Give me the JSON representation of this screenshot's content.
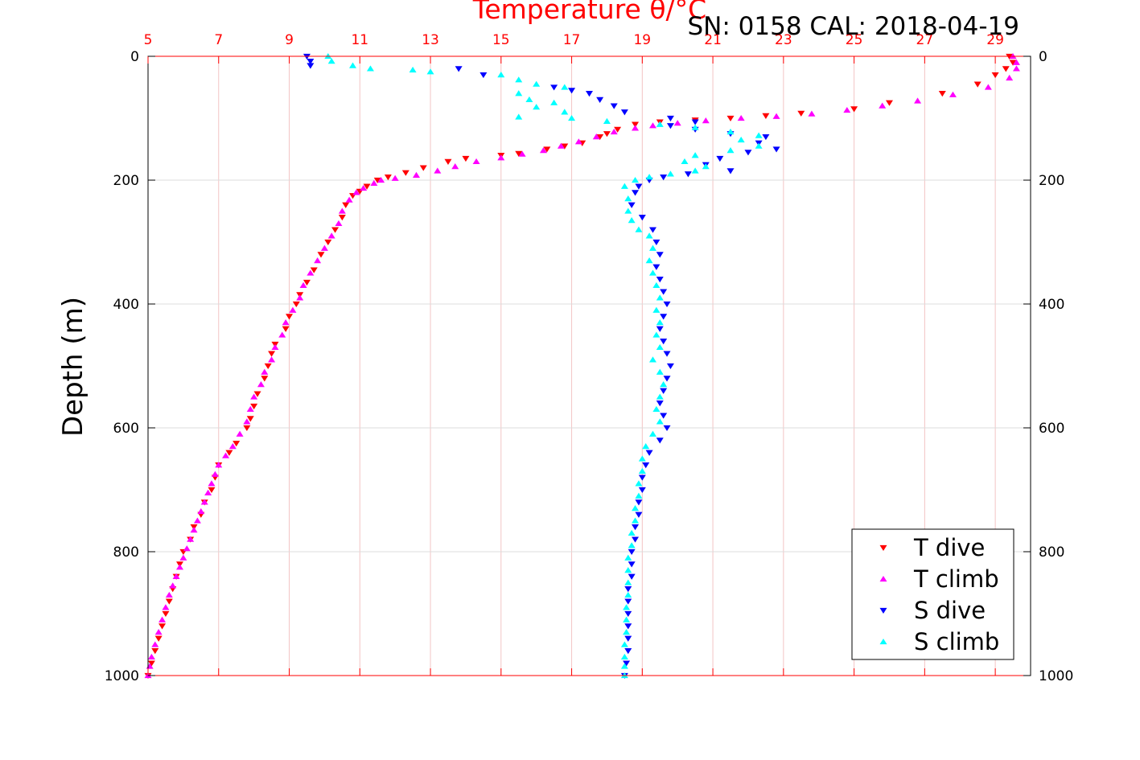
{
  "chart_data": {
    "type": "scatter",
    "title": "Temperature θ/°C",
    "annotation": "SN: 0158  CAL: 2018-04-19",
    "ylabel": "Depth (m)",
    "x_top_ticks": [
      "5",
      "7",
      "9",
      "11",
      "13",
      "15",
      "17",
      "19",
      "21",
      "23",
      "25",
      "27",
      "29"
    ],
    "x_top_values": [
      5,
      7,
      9,
      11,
      13,
      15,
      17,
      19,
      21,
      23,
      25,
      27,
      29
    ],
    "y_ticks": [
      "0",
      "200",
      "400",
      "600",
      "800",
      "1000"
    ],
    "y_values": [
      0,
      200,
      400,
      600,
      800,
      1000
    ],
    "xlim": [
      5,
      30
    ],
    "ylim": [
      0,
      1000
    ],
    "y_reversed": true,
    "grid": true,
    "legend_position": "bottom-right",
    "series": [
      {
        "name": "T dive",
        "color": "#ff0000",
        "marker": "triangle-down",
        "points": [
          [
            29.4,
            0
          ],
          [
            29.5,
            10
          ],
          [
            29.3,
            20
          ],
          [
            29.0,
            30
          ],
          [
            28.5,
            45
          ],
          [
            27.5,
            60
          ],
          [
            26.0,
            75
          ],
          [
            25.0,
            85
          ],
          [
            23.5,
            92
          ],
          [
            22.5,
            96
          ],
          [
            21.5,
            100
          ],
          [
            20.5,
            103
          ],
          [
            19.5,
            106
          ],
          [
            18.8,
            110
          ],
          [
            18.3,
            118
          ],
          [
            18.0,
            125
          ],
          [
            17.8,
            130
          ],
          [
            17.3,
            140
          ],
          [
            16.8,
            145
          ],
          [
            16.3,
            150
          ],
          [
            15.5,
            157
          ],
          [
            15.0,
            160
          ],
          [
            14.0,
            165
          ],
          [
            13.5,
            170
          ],
          [
            12.8,
            180
          ],
          [
            12.3,
            188
          ],
          [
            11.8,
            195
          ],
          [
            11.5,
            200
          ],
          [
            11.2,
            210
          ],
          [
            11.0,
            218
          ],
          [
            10.8,
            225
          ],
          [
            10.6,
            240
          ],
          [
            10.5,
            260
          ],
          [
            10.3,
            280
          ],
          [
            10.1,
            300
          ],
          [
            9.9,
            320
          ],
          [
            9.7,
            345
          ],
          [
            9.5,
            365
          ],
          [
            9.3,
            385
          ],
          [
            9.2,
            400
          ],
          [
            9.0,
            420
          ],
          [
            8.9,
            440
          ],
          [
            8.6,
            465
          ],
          [
            8.5,
            480
          ],
          [
            8.4,
            500
          ],
          [
            8.3,
            520
          ],
          [
            8.1,
            545
          ],
          [
            8.0,
            565
          ],
          [
            7.9,
            585
          ],
          [
            7.8,
            600
          ],
          [
            7.5,
            625
          ],
          [
            7.3,
            640
          ],
          [
            7.0,
            660
          ],
          [
            6.9,
            680
          ],
          [
            6.8,
            700
          ],
          [
            6.6,
            720
          ],
          [
            6.5,
            740
          ],
          [
            6.3,
            760
          ],
          [
            6.2,
            780
          ],
          [
            6.0,
            800
          ],
          [
            5.9,
            820
          ],
          [
            5.8,
            840
          ],
          [
            5.7,
            860
          ],
          [
            5.6,
            880
          ],
          [
            5.5,
            900
          ],
          [
            5.4,
            920
          ],
          [
            5.3,
            940
          ],
          [
            5.2,
            960
          ],
          [
            5.1,
            980
          ],
          [
            5.0,
            1000
          ]
        ]
      },
      {
        "name": "T climb",
        "color": "#ff00ff",
        "marker": "triangle-up",
        "points": [
          [
            29.5,
            0
          ],
          [
            29.6,
            10
          ],
          [
            29.6,
            20
          ],
          [
            29.4,
            35
          ],
          [
            28.8,
            50
          ],
          [
            27.8,
            62
          ],
          [
            26.8,
            72
          ],
          [
            25.8,
            80
          ],
          [
            24.8,
            87
          ],
          [
            23.8,
            93
          ],
          [
            22.8,
            97
          ],
          [
            21.8,
            100
          ],
          [
            20.8,
            104
          ],
          [
            20.0,
            108
          ],
          [
            19.3,
            112
          ],
          [
            18.8,
            116
          ],
          [
            18.2,
            122
          ],
          [
            17.7,
            130
          ],
          [
            17.2,
            138
          ],
          [
            16.7,
            145
          ],
          [
            16.2,
            152
          ],
          [
            15.6,
            158
          ],
          [
            15.0,
            164
          ],
          [
            14.3,
            170
          ],
          [
            13.7,
            178
          ],
          [
            13.2,
            185
          ],
          [
            12.6,
            192
          ],
          [
            12.0,
            197
          ],
          [
            11.6,
            200
          ],
          [
            11.4,
            205
          ],
          [
            11.1,
            213
          ],
          [
            10.9,
            220
          ],
          [
            10.7,
            232
          ],
          [
            10.5,
            250
          ],
          [
            10.4,
            270
          ],
          [
            10.2,
            290
          ],
          [
            10.0,
            310
          ],
          [
            9.8,
            330
          ],
          [
            9.6,
            350
          ],
          [
            9.4,
            370
          ],
          [
            9.3,
            390
          ],
          [
            9.1,
            410
          ],
          [
            8.9,
            430
          ],
          [
            8.8,
            450
          ],
          [
            8.6,
            470
          ],
          [
            8.5,
            490
          ],
          [
            8.3,
            510
          ],
          [
            8.2,
            530
          ],
          [
            8.0,
            550
          ],
          [
            7.9,
            570
          ],
          [
            7.8,
            590
          ],
          [
            7.6,
            610
          ],
          [
            7.4,
            630
          ],
          [
            7.2,
            645
          ],
          [
            7.0,
            660
          ],
          [
            6.9,
            675
          ],
          [
            6.8,
            690
          ],
          [
            6.7,
            705
          ],
          [
            6.6,
            720
          ],
          [
            6.5,
            735
          ],
          [
            6.4,
            750
          ],
          [
            6.3,
            765
          ],
          [
            6.2,
            780
          ],
          [
            6.1,
            795
          ],
          [
            6.0,
            810
          ],
          [
            5.9,
            825
          ],
          [
            5.8,
            840
          ],
          [
            5.7,
            855
          ],
          [
            5.6,
            870
          ],
          [
            5.5,
            890
          ],
          [
            5.4,
            910
          ],
          [
            5.3,
            930
          ],
          [
            5.2,
            950
          ],
          [
            5.1,
            970
          ],
          [
            5.05,
            985
          ],
          [
            5.0,
            1000
          ]
        ]
      },
      {
        "name": "S dive",
        "color": "#0000ff",
        "marker": "triangle-down",
        "points": [
          [
            9.5,
            0
          ],
          [
            9.6,
            8
          ],
          [
            9.6,
            15
          ],
          [
            13.8,
            20
          ],
          [
            14.5,
            30
          ],
          [
            16.5,
            50
          ],
          [
            17.0,
            55
          ],
          [
            17.5,
            60
          ],
          [
            17.8,
            70
          ],
          [
            18.2,
            80
          ],
          [
            18.5,
            90
          ],
          [
            19.8,
            100
          ],
          [
            20.5,
            106
          ],
          [
            19.8,
            112
          ],
          [
            20.5,
            118
          ],
          [
            21.5,
            125
          ],
          [
            22.5,
            130
          ],
          [
            22.3,
            140
          ],
          [
            22.8,
            150
          ],
          [
            22.0,
            155
          ],
          [
            21.2,
            165
          ],
          [
            20.8,
            175
          ],
          [
            21.5,
            185
          ],
          [
            20.3,
            190
          ],
          [
            19.6,
            195
          ],
          [
            19.2,
            200
          ],
          [
            18.9,
            210
          ],
          [
            18.8,
            220
          ],
          [
            18.7,
            240
          ],
          [
            19.0,
            260
          ],
          [
            19.3,
            280
          ],
          [
            19.4,
            300
          ],
          [
            19.5,
            320
          ],
          [
            19.4,
            340
          ],
          [
            19.5,
            360
          ],
          [
            19.6,
            380
          ],
          [
            19.7,
            400
          ],
          [
            19.6,
            420
          ],
          [
            19.5,
            440
          ],
          [
            19.6,
            460
          ],
          [
            19.7,
            480
          ],
          [
            19.8,
            500
          ],
          [
            19.7,
            520
          ],
          [
            19.6,
            540
          ],
          [
            19.5,
            560
          ],
          [
            19.6,
            580
          ],
          [
            19.7,
            600
          ],
          [
            19.5,
            620
          ],
          [
            19.2,
            640
          ],
          [
            19.1,
            660
          ],
          [
            19.0,
            680
          ],
          [
            19.0,
            700
          ],
          [
            18.9,
            720
          ],
          [
            18.9,
            740
          ],
          [
            18.8,
            760
          ],
          [
            18.8,
            780
          ],
          [
            18.7,
            800
          ],
          [
            18.7,
            820
          ],
          [
            18.7,
            840
          ],
          [
            18.6,
            860
          ],
          [
            18.6,
            880
          ],
          [
            18.6,
            900
          ],
          [
            18.6,
            920
          ],
          [
            18.6,
            940
          ],
          [
            18.6,
            960
          ],
          [
            18.55,
            980
          ],
          [
            18.5,
            1000
          ]
        ]
      },
      {
        "name": "S climb",
        "color": "#00ffff",
        "marker": "triangle-up",
        "points": [
          [
            10.1,
            0
          ],
          [
            10.2,
            8
          ],
          [
            10.8,
            15
          ],
          [
            11.3,
            20
          ],
          [
            12.5,
            22
          ],
          [
            13.0,
            25
          ],
          [
            15.0,
            30
          ],
          [
            15.5,
            38
          ],
          [
            16.0,
            45
          ],
          [
            16.8,
            50
          ],
          [
            15.5,
            60
          ],
          [
            15.8,
            70
          ],
          [
            16.5,
            75
          ],
          [
            16.0,
            82
          ],
          [
            16.8,
            90
          ],
          [
            15.5,
            98
          ],
          [
            17.0,
            100
          ],
          [
            18.0,
            105
          ],
          [
            19.5,
            110
          ],
          [
            20.5,
            115
          ],
          [
            21.5,
            122
          ],
          [
            22.3,
            128
          ],
          [
            21.8,
            135
          ],
          [
            22.3,
            145
          ],
          [
            21.5,
            152
          ],
          [
            20.5,
            160
          ],
          [
            20.2,
            170
          ],
          [
            20.8,
            178
          ],
          [
            20.5,
            185
          ],
          [
            19.8,
            190
          ],
          [
            19.2,
            195
          ],
          [
            18.8,
            200
          ],
          [
            18.5,
            210
          ],
          [
            18.6,
            230
          ],
          [
            18.6,
            250
          ],
          [
            18.7,
            265
          ],
          [
            18.9,
            280
          ],
          [
            19.2,
            290
          ],
          [
            19.3,
            310
          ],
          [
            19.2,
            330
          ],
          [
            19.3,
            350
          ],
          [
            19.4,
            370
          ],
          [
            19.5,
            390
          ],
          [
            19.4,
            410
          ],
          [
            19.5,
            430
          ],
          [
            19.4,
            450
          ],
          [
            19.5,
            470
          ],
          [
            19.3,
            490
          ],
          [
            19.5,
            510
          ],
          [
            19.6,
            530
          ],
          [
            19.5,
            550
          ],
          [
            19.4,
            570
          ],
          [
            19.5,
            590
          ],
          [
            19.3,
            610
          ],
          [
            19.1,
            630
          ],
          [
            19.0,
            650
          ],
          [
            19.0,
            670
          ],
          [
            18.9,
            690
          ],
          [
            18.9,
            710
          ],
          [
            18.8,
            730
          ],
          [
            18.8,
            750
          ],
          [
            18.7,
            770
          ],
          [
            18.7,
            790
          ],
          [
            18.6,
            810
          ],
          [
            18.6,
            830
          ],
          [
            18.6,
            850
          ],
          [
            18.6,
            870
          ],
          [
            18.55,
            890
          ],
          [
            18.55,
            910
          ],
          [
            18.55,
            930
          ],
          [
            18.5,
            950
          ],
          [
            18.5,
            970
          ],
          [
            18.5,
            985
          ],
          [
            18.5,
            1000
          ]
        ]
      }
    ]
  }
}
